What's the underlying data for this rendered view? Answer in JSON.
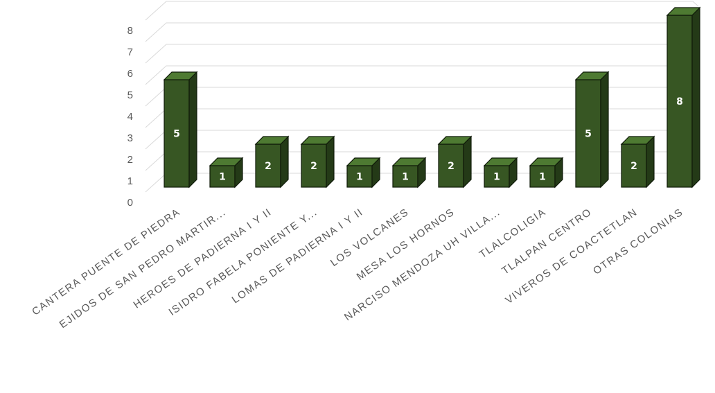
{
  "chart_data": {
    "type": "bar",
    "categories": [
      "CANTERA PUENTE DE PIEDRA",
      "EJIDOS DE SAN PEDRO MARTIR...",
      "HEROES DE PADIERNA I Y II",
      "ISIDRO FABELA PONIENTE Y...",
      "LOMAS DE  PADIERNA I Y II",
      "LOS VOLCANES",
      "MESA LOS HORNOS",
      "NARCISO MENDOZA UH VILLA...",
      "TLALCOLIGIA",
      "TLALPAN CENTRO",
      "VIVEROS DE COACTETLAN",
      "OTRAS COLONIAS"
    ],
    "values": [
      5,
      1,
      2,
      2,
      1,
      1,
      2,
      1,
      1,
      5,
      2,
      8
    ],
    "y_ticks": [
      "0",
      "1",
      "2",
      "3",
      "4",
      "5",
      "6",
      "7",
      "8"
    ],
    "ylim": [
      0,
      8
    ],
    "grid": true,
    "style": "3d-column",
    "colors": {
      "bar_front": "#375623",
      "bar_top": "#4e7a32",
      "bar_side": "#243a17",
      "bar_edge": "#0f1a09",
      "grid": "#d9d9d9",
      "axis_text": "#595959",
      "label_text": "#ffffff"
    }
  }
}
